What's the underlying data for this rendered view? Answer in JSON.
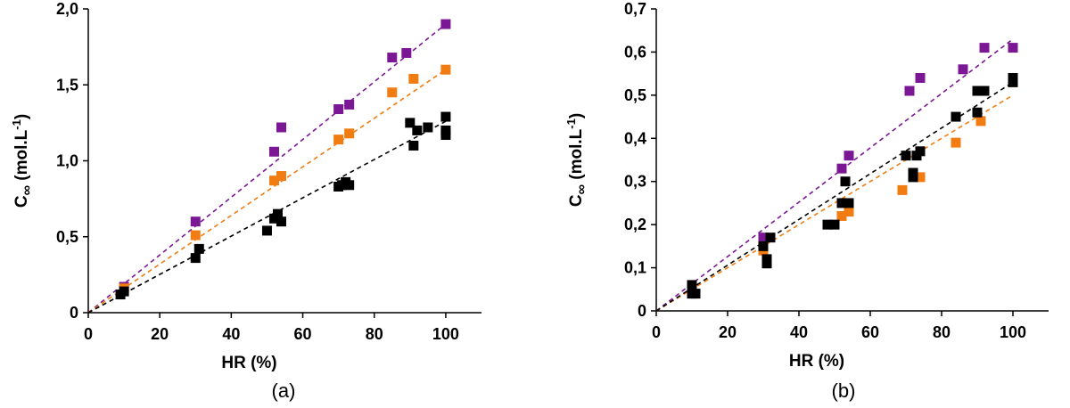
{
  "chart_data": [
    {
      "type": "scatter",
      "panel_label": "(a)",
      "title": "",
      "xlabel": "HR (%)",
      "ylabel": {
        "base": "C",
        "sub": "∞",
        "rest": " (mol.L",
        "sup": "-1",
        "close": ")"
      },
      "xlim": [
        0,
        110
      ],
      "ylim": [
        0,
        2.0
      ],
      "xticks": [
        0,
        20,
        40,
        60,
        80,
        100
      ],
      "xtick_labels": [
        "0",
        "20",
        "40",
        "60",
        "80",
        "100"
      ],
      "yticks": [
        0,
        0.5,
        1.0,
        1.5,
        2.0
      ],
      "ytick_labels": [
        "0",
        "0,5",
        "1,0",
        "1,5",
        "2,0"
      ],
      "grid": false,
      "series": [
        {
          "color": "#7b1795",
          "points": [
            [
              10,
              0.17
            ],
            [
              30,
              0.6
            ],
            [
              52,
              1.06
            ],
            [
              54,
              1.22
            ],
            [
              70,
              1.34
            ],
            [
              73,
              1.37
            ],
            [
              85,
              1.68
            ],
            [
              89,
              1.71
            ],
            [
              100,
              1.9
            ]
          ],
          "trend": [
            [
              0,
              0
            ],
            [
              100,
              1.9
            ]
          ]
        },
        {
          "color": "#f07c12",
          "points": [
            [
              10,
              0.16
            ],
            [
              30,
              0.51
            ],
            [
              52,
              0.87
            ],
            [
              54,
              0.9
            ],
            [
              70,
              1.14
            ],
            [
              73,
              1.18
            ],
            [
              85,
              1.45
            ],
            [
              91,
              1.54
            ],
            [
              100,
              1.6
            ]
          ],
          "trend": [
            [
              0,
              0
            ],
            [
              100,
              1.6
            ]
          ]
        },
        {
          "color": "#000000",
          "points": [
            [
              9,
              0.12
            ],
            [
              10,
              0.14
            ],
            [
              30,
              0.36
            ],
            [
              31,
              0.42
            ],
            [
              50,
              0.54
            ],
            [
              52,
              0.62
            ],
            [
              53,
              0.65
            ],
            [
              54,
              0.6
            ],
            [
              70,
              0.83
            ],
            [
              71,
              0.84
            ],
            [
              72,
              0.86
            ],
            [
              73,
              0.84
            ],
            [
              90,
              1.25
            ],
            [
              91,
              1.1
            ],
            [
              92,
              1.2
            ],
            [
              95,
              1.22
            ],
            [
              100,
              1.29
            ],
            [
              100,
              1.2
            ],
            [
              100,
              1.17
            ]
          ],
          "trend": [
            [
              0,
              0
            ],
            [
              100,
              1.26
            ]
          ]
        }
      ]
    },
    {
      "type": "scatter",
      "panel_label": "(b)",
      "title": "",
      "xlabel": "HR (%)",
      "ylabel": {
        "base": "C",
        "sub": "∞",
        "rest": " (mol.L",
        "sup": "-1",
        "close": ")"
      },
      "xlim": [
        0,
        110
      ],
      "ylim": [
        0,
        0.7
      ],
      "xticks": [
        0,
        20,
        40,
        60,
        80,
        100
      ],
      "xtick_labels": [
        "0",
        "20",
        "40",
        "60",
        "80",
        "100"
      ],
      "yticks": [
        0,
        0.1,
        0.2,
        0.3,
        0.4,
        0.5,
        0.6,
        0.7
      ],
      "ytick_labels": [
        "0",
        "0,1",
        "0,2",
        "0,3",
        "0,4",
        "0,5",
        "0,6",
        "0,7"
      ],
      "grid": false,
      "series": [
        {
          "color": "#7b1795",
          "points": [
            [
              10,
              0.06
            ],
            [
              30,
              0.17
            ],
            [
              52,
              0.33
            ],
            [
              54,
              0.36
            ],
            [
              71,
              0.51
            ],
            [
              74,
              0.54
            ],
            [
              86,
              0.56
            ],
            [
              92,
              0.61
            ],
            [
              100,
              0.61
            ]
          ],
          "trend": [
            [
              0,
              0
            ],
            [
              100,
              0.63
            ]
          ]
        },
        {
          "color": "#f07c12",
          "points": [
            [
              10,
              0.05
            ],
            [
              30,
              0.14
            ],
            [
              52,
              0.22
            ],
            [
              54,
              0.23
            ],
            [
              69,
              0.28
            ],
            [
              74,
              0.31
            ],
            [
              84,
              0.39
            ],
            [
              91,
              0.44
            ],
            [
              100,
              0.53
            ]
          ],
          "trend": [
            [
              0,
              0
            ],
            [
              100,
              0.5
            ]
          ]
        },
        {
          "color": "#000000",
          "points": [
            [
              10,
              0.04
            ],
            [
              11,
              0.04
            ],
            [
              10,
              0.06
            ],
            [
              30,
              0.15
            ],
            [
              31,
              0.11
            ],
            [
              31,
              0.12
            ],
            [
              32,
              0.17
            ],
            [
              48,
              0.2
            ],
            [
              50,
              0.2
            ],
            [
              52,
              0.25
            ],
            [
              53,
              0.3
            ],
            [
              54,
              0.25
            ],
            [
              70,
              0.36
            ],
            [
              72,
              0.32
            ],
            [
              72,
              0.31
            ],
            [
              73,
              0.36
            ],
            [
              74,
              0.37
            ],
            [
              84,
              0.45
            ],
            [
              90,
              0.51
            ],
            [
              90,
              0.46
            ],
            [
              92,
              0.51
            ],
            [
              100,
              0.54
            ],
            [
              100,
              0.53
            ]
          ],
          "trend": [
            [
              0,
              0
            ],
            [
              100,
              0.53
            ]
          ]
        }
      ]
    }
  ]
}
